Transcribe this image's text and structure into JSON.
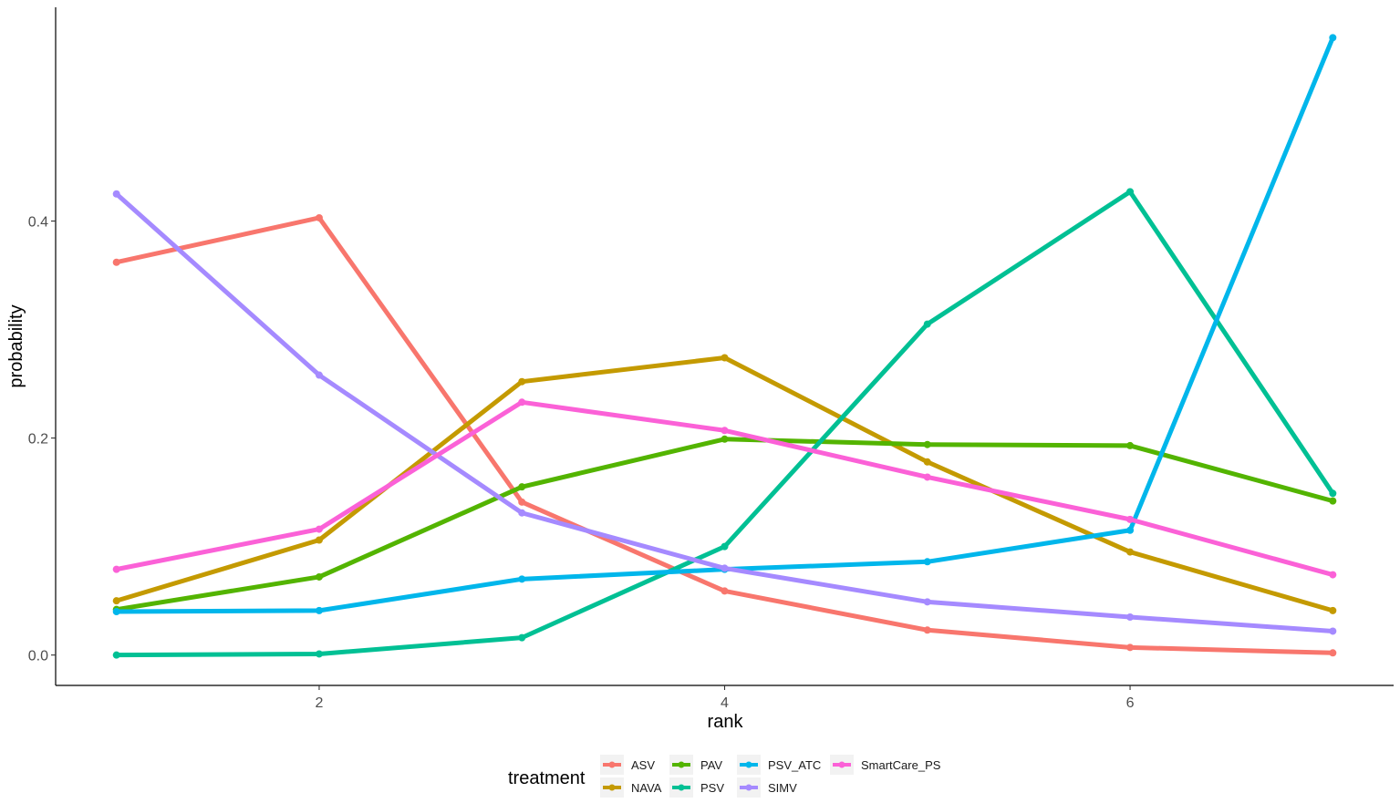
{
  "chart_data": {
    "type": "line",
    "title": "",
    "xlabel": "rank",
    "ylabel": "probability",
    "x": [
      1,
      2,
      3,
      4,
      5,
      6,
      7
    ],
    "xlim": [
      0.7,
      7.3
    ],
    "ylim": [
      -0.028,
      0.597
    ],
    "xticks": [
      2,
      4,
      6
    ],
    "xtick_labels": [
      "2",
      "4",
      "6"
    ],
    "yticks": [
      0.0,
      0.2,
      0.4
    ],
    "ytick_labels": [
      "0.0",
      "0.2",
      "0.4"
    ],
    "grid": false,
    "legend": {
      "title": "treatment",
      "position": "bottom",
      "ncol": 4
    },
    "series": [
      {
        "name": "ASV",
        "color": "#F8766D",
        "values": [
          0.362,
          0.403,
          0.141,
          0.059,
          0.023,
          0.007,
          0.002
        ]
      },
      {
        "name": "NAVA",
        "color": "#C49A00",
        "values": [
          0.05,
          0.106,
          0.252,
          0.274,
          0.178,
          0.095,
          0.041
        ]
      },
      {
        "name": "PAV",
        "color": "#53B400",
        "values": [
          0.042,
          0.072,
          0.155,
          0.199,
          0.194,
          0.193,
          0.142
        ]
      },
      {
        "name": "PSV",
        "color": "#00C094",
        "values": [
          0.0,
          0.001,
          0.016,
          0.1,
          0.305,
          0.427,
          0.149
        ]
      },
      {
        "name": "PSV_ATC",
        "color": "#00B6EB",
        "values": [
          0.04,
          0.041,
          0.07,
          0.079,
          0.086,
          0.115,
          0.569
        ]
      },
      {
        "name": "SIMV",
        "color": "#A58AFF",
        "values": [
          0.425,
          0.258,
          0.131,
          0.08,
          0.049,
          0.035,
          0.022
        ]
      },
      {
        "name": "SmartCare_PS",
        "color": "#FB61D7",
        "values": [
          0.079,
          0.116,
          0.233,
          0.207,
          0.164,
          0.125,
          0.074
        ]
      }
    ]
  }
}
